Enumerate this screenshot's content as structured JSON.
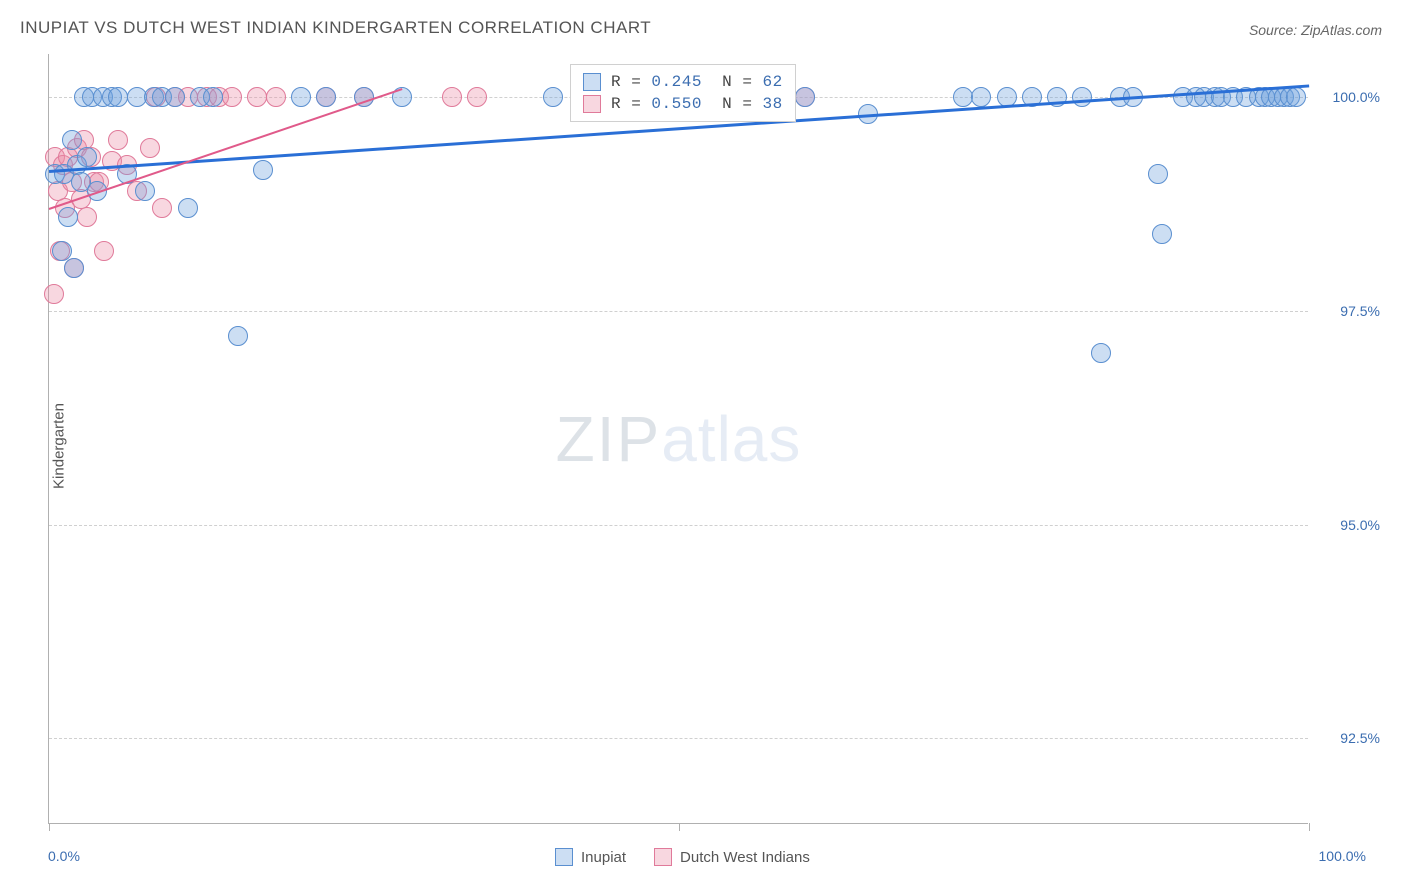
{
  "title": "INUPIAT VS DUTCH WEST INDIAN KINDERGARTEN CORRELATION CHART",
  "source": "Source: ZipAtlas.com",
  "ylabel": "Kindergarten",
  "watermark": {
    "part1": "ZIP",
    "part2": "atlas"
  },
  "chart": {
    "type": "scatter",
    "background_color": "#ffffff",
    "grid_color": "#d0d0d0",
    "axis_color": "#b0b0b0",
    "xlim": [
      0,
      100
    ],
    "ylim": [
      91.5,
      100.5
    ],
    "yticks": [
      92.5,
      95.0,
      97.5,
      100.0
    ],
    "ytick_labels": [
      "92.5%",
      "95.0%",
      "97.5%",
      "100.0%"
    ],
    "xtick_positions": [
      0,
      50,
      100
    ],
    "xtick_labels": {
      "left": "0.0%",
      "right": "100.0%"
    },
    "marker_radius": 10,
    "marker_stroke_width": 1.4,
    "series": {
      "inupiat": {
        "label": "Inupiat",
        "fill": "rgba(110,160,220,0.35)",
        "stroke": "#5a8fd0",
        "trend_color": "#2a6fd6",
        "trend_width": 2.5,
        "trend_start": [
          0,
          99.15
        ],
        "trend_end": [
          100,
          100.15
        ],
        "r_value": "0.245",
        "n_value": "62",
        "points": [
          [
            0.5,
            99.1
          ],
          [
            1.0,
            98.2
          ],
          [
            1.2,
            99.1
          ],
          [
            1.5,
            98.6
          ],
          [
            1.8,
            99.5
          ],
          [
            2.0,
            98.0
          ],
          [
            2.2,
            99.2
          ],
          [
            2.5,
            99.0
          ],
          [
            2.8,
            100.0
          ],
          [
            3.0,
            99.3
          ],
          [
            3.4,
            100.0
          ],
          [
            3.8,
            98.9
          ],
          [
            4.3,
            100.0
          ],
          [
            5.0,
            100.0
          ],
          [
            5.5,
            100.0
          ],
          [
            6.2,
            99.1
          ],
          [
            7.0,
            100.0
          ],
          [
            7.6,
            98.9
          ],
          [
            8.3,
            100.0
          ],
          [
            9.0,
            100.0
          ],
          [
            10.0,
            100.0
          ],
          [
            11.0,
            98.7
          ],
          [
            12.0,
            100.0
          ],
          [
            13.0,
            100.0
          ],
          [
            15.0,
            97.2
          ],
          [
            17.0,
            99.15
          ],
          [
            20.0,
            100.0
          ],
          [
            22.0,
            100.0
          ],
          [
            25.0,
            100.0
          ],
          [
            28.0,
            100.0
          ],
          [
            40.0,
            100.0
          ],
          [
            50.0,
            100.0
          ],
          [
            52.0,
            100.0
          ],
          [
            54.0,
            100.0
          ],
          [
            57.0,
            100.0
          ],
          [
            60.0,
            100.0
          ],
          [
            65.0,
            99.8
          ],
          [
            72.5,
            100.0
          ],
          [
            74.0,
            100.0
          ],
          [
            76.0,
            100.0
          ],
          [
            78.0,
            100.0
          ],
          [
            80.0,
            100.0
          ],
          [
            82.0,
            100.0
          ],
          [
            83.5,
            97.0
          ],
          [
            85.0,
            100.0
          ],
          [
            86.0,
            100.0
          ],
          [
            88.0,
            99.1
          ],
          [
            88.3,
            98.4
          ],
          [
            90.0,
            100.0
          ],
          [
            91.0,
            100.0
          ],
          [
            91.7,
            100.0
          ],
          [
            92.5,
            100.0
          ],
          [
            93.0,
            100.0
          ],
          [
            94.0,
            100.0
          ],
          [
            95.0,
            100.0
          ],
          [
            96.0,
            100.0
          ],
          [
            96.5,
            100.0
          ],
          [
            97.0,
            100.0
          ],
          [
            97.5,
            100.0
          ],
          [
            98.0,
            100.0
          ],
          [
            98.5,
            100.0
          ],
          [
            99.0,
            100.0
          ]
        ]
      },
      "dutch": {
        "label": "Dutch West Indians",
        "fill": "rgba(235,140,165,0.35)",
        "stroke": "#e07a9a",
        "trend_color": "#e05a8a",
        "trend_width": 2.2,
        "trend_start": [
          0,
          98.7
        ],
        "trend_end": [
          28,
          100.1
        ],
        "r_value": "0.550",
        "n_value": "38",
        "points": [
          [
            0.4,
            97.7
          ],
          [
            0.5,
            99.3
          ],
          [
            0.7,
            98.9
          ],
          [
            0.9,
            98.2
          ],
          [
            1.1,
            99.2
          ],
          [
            1.3,
            98.7
          ],
          [
            1.5,
            99.3
          ],
          [
            1.8,
            99.0
          ],
          [
            2.0,
            98.0
          ],
          [
            2.2,
            99.4
          ],
          [
            2.5,
            98.8
          ],
          [
            2.8,
            99.5
          ],
          [
            3.0,
            98.6
          ],
          [
            3.3,
            99.3
          ],
          [
            3.6,
            99.0
          ],
          [
            4.0,
            99.0
          ],
          [
            4.4,
            98.2
          ],
          [
            5.0,
            99.25
          ],
          [
            5.5,
            99.5
          ],
          [
            6.2,
            99.2
          ],
          [
            7.0,
            98.9
          ],
          [
            8.0,
            99.4
          ],
          [
            8.5,
            100.0
          ],
          [
            9.0,
            98.7
          ],
          [
            10.0,
            100.0
          ],
          [
            11.0,
            100.0
          ],
          [
            12.5,
            100.0
          ],
          [
            13.5,
            100.0
          ],
          [
            14.5,
            100.0
          ],
          [
            16.5,
            100.0
          ],
          [
            18.0,
            100.0
          ],
          [
            22.0,
            100.0
          ],
          [
            25.0,
            100.0
          ],
          [
            32.0,
            100.0
          ],
          [
            34.0,
            100.0
          ],
          [
            48.0,
            100.0
          ],
          [
            58.0,
            100.0
          ],
          [
            60.0,
            100.0
          ]
        ]
      }
    }
  },
  "legend_top": {
    "rows": [
      {
        "swatch_fill": "rgba(110,160,220,0.35)",
        "swatch_stroke": "#5a8fd0",
        "r": "0.245",
        "n": "62"
      },
      {
        "swatch_fill": "rgba(235,140,165,0.35)",
        "swatch_stroke": "#e07a9a",
        "r": "0.550",
        "n": "38"
      }
    ]
  },
  "legend_bottom": {
    "items": [
      {
        "swatch_fill": "rgba(110,160,220,0.35)",
        "swatch_stroke": "#5a8fd0",
        "label": "Inupiat"
      },
      {
        "swatch_fill": "rgba(235,140,165,0.35)",
        "swatch_stroke": "#e07a9a",
        "label": "Dutch West Indians"
      }
    ]
  }
}
